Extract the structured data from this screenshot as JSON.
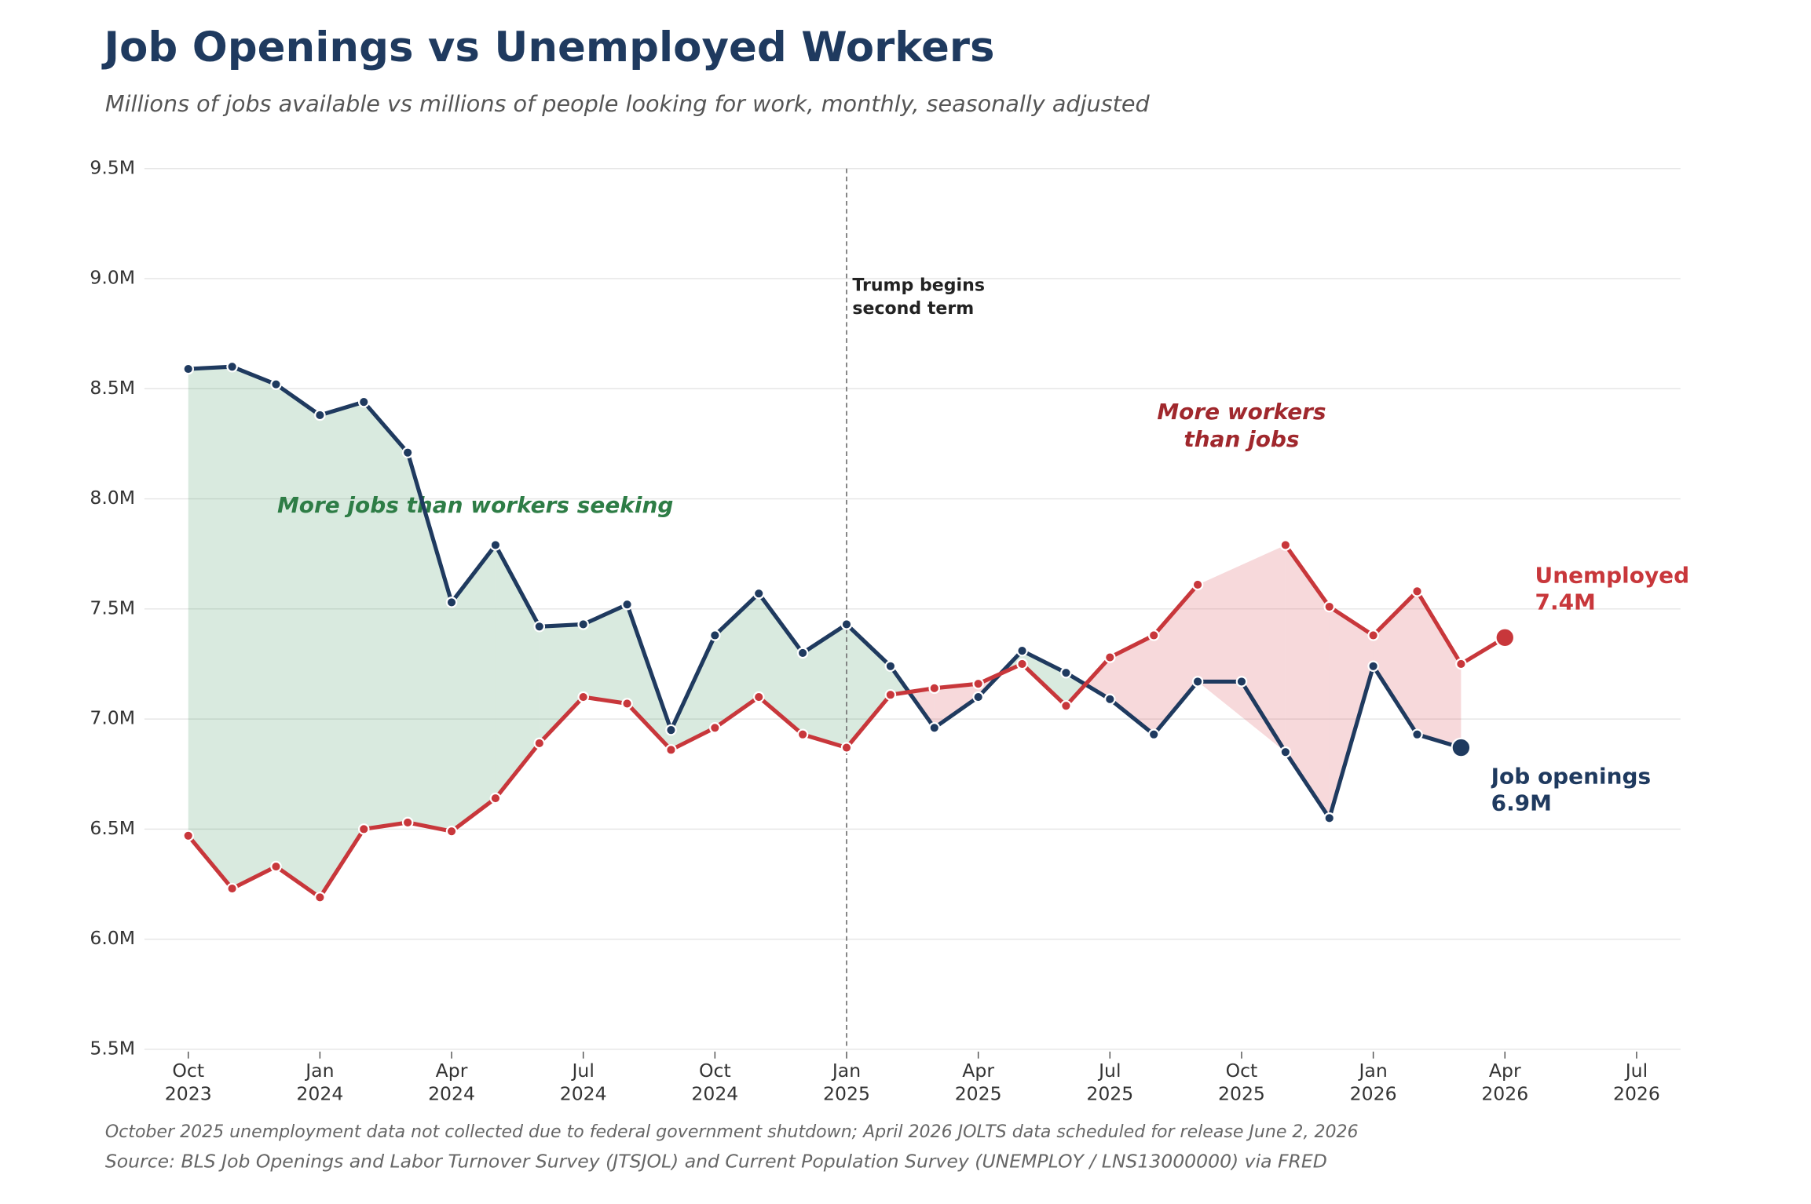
{
  "chart_data": {
    "type": "line",
    "title": "Job Openings vs Unemployed Workers",
    "subtitle": "Millions of jobs available vs millions of people looking for work, monthly, seasonally adjusted",
    "x": [
      "2023-10",
      "2023-11",
      "2023-12",
      "2024-01",
      "2024-02",
      "2024-03",
      "2024-04",
      "2024-05",
      "2024-06",
      "2024-07",
      "2024-08",
      "2024-09",
      "2024-10",
      "2024-11",
      "2024-12",
      "2025-01",
      "2025-02",
      "2025-03",
      "2025-04",
      "2025-05",
      "2025-06",
      "2025-07",
      "2025-08",
      "2025-09",
      "2025-10",
      "2025-11",
      "2025-12",
      "2026-01",
      "2026-02",
      "2026-03",
      "2026-04"
    ],
    "series": [
      {
        "name": "Job openings",
        "color": "#1f3a5f",
        "values": [
          8.59,
          8.6,
          8.52,
          8.38,
          8.44,
          8.21,
          7.53,
          7.79,
          7.42,
          7.43,
          7.52,
          6.95,
          7.38,
          7.57,
          7.3,
          7.43,
          7.24,
          6.96,
          7.1,
          7.31,
          7.21,
          7.09,
          6.93,
          7.17,
          7.17,
          6.85,
          6.55,
          7.24,
          6.93,
          6.87,
          null
        ],
        "value_labels": [
          null,
          null,
          null,
          null,
          null,
          null,
          null,
          null,
          null,
          null,
          null,
          null,
          null,
          null,
          null,
          null,
          null,
          null,
          null,
          null,
          null,
          null,
          null,
          null,
          null,
          null,
          null,
          null,
          null,
          "6.9M",
          null
        ]
      },
      {
        "name": "Unemployed",
        "color": "#c8373b",
        "values": [
          6.47,
          6.23,
          6.33,
          6.19,
          6.5,
          6.53,
          6.49,
          6.64,
          6.89,
          7.1,
          7.07,
          6.86,
          6.96,
          7.1,
          6.93,
          6.87,
          7.11,
          7.14,
          7.16,
          7.25,
          7.06,
          7.28,
          7.38,
          7.61,
          null,
          7.79,
          7.51,
          7.38,
          7.58,
          7.25,
          7.37
        ],
        "value_labels": [
          null,
          null,
          null,
          null,
          null,
          null,
          null,
          null,
          null,
          null,
          null,
          null,
          null,
          null,
          null,
          null,
          null,
          null,
          null,
          null,
          null,
          null,
          null,
          null,
          null,
          null,
          null,
          null,
          null,
          null,
          "7.4M"
        ]
      }
    ],
    "xlim": [
      "2023-09",
      "2026-08"
    ],
    "xticks": [
      {
        "value": "2023-10",
        "label": "Oct\n2023"
      },
      {
        "value": "2024-01",
        "label": "Jan\n2024"
      },
      {
        "value": "2024-04",
        "label": "Apr\n2024"
      },
      {
        "value": "2024-07",
        "label": "Jul\n2024"
      },
      {
        "value": "2024-10",
        "label": "Oct\n2024"
      },
      {
        "value": "2025-01",
        "label": "Jan\n2025"
      },
      {
        "value": "2025-04",
        "label": "Apr\n2025"
      },
      {
        "value": "2025-07",
        "label": "Jul\n2025"
      },
      {
        "value": "2025-10",
        "label": "Oct\n2025"
      },
      {
        "value": "2026-01",
        "label": "Jan\n2026"
      },
      {
        "value": "2026-04",
        "label": "Apr\n2026"
      },
      {
        "value": "2026-07",
        "label": "Jul\n2026"
      }
    ],
    "ylim": [
      5.5,
      9.5
    ],
    "yticks": [
      {
        "value": 5.5,
        "label": "5.5M"
      },
      {
        "value": 6,
        "label": "6.0M"
      },
      {
        "value": 6.5,
        "label": "6.5M"
      },
      {
        "value": 7,
        "label": "7.0M"
      },
      {
        "value": 7.5,
        "label": "7.5M"
      },
      {
        "value": 8,
        "label": "8.0M"
      },
      {
        "value": 8.5,
        "label": "8.5M"
      },
      {
        "value": 9,
        "label": "9.0M"
      },
      {
        "value": 9.5,
        "label": "9.5M"
      }
    ],
    "grid": true,
    "vline": {
      "x": "2025-01",
      "label": "Trump begins\nsecond term"
    },
    "fill_labels": {
      "above": "More jobs than workers seeking",
      "below": "More workers\nthan jobs"
    },
    "fill_colors": {
      "above": "#2e8b4f",
      "below": "#e06670"
    },
    "note": "October 2025 unemployment data not collected due to federal government shutdown; April 2026 JOLTS data scheduled for release June 2, 2026",
    "source": "Source: BLS Job Openings and Labor Turnover Survey (JTSJOL) and Current Population Survey (UNEMPLOY / LNS13000000) via FRED"
  }
}
